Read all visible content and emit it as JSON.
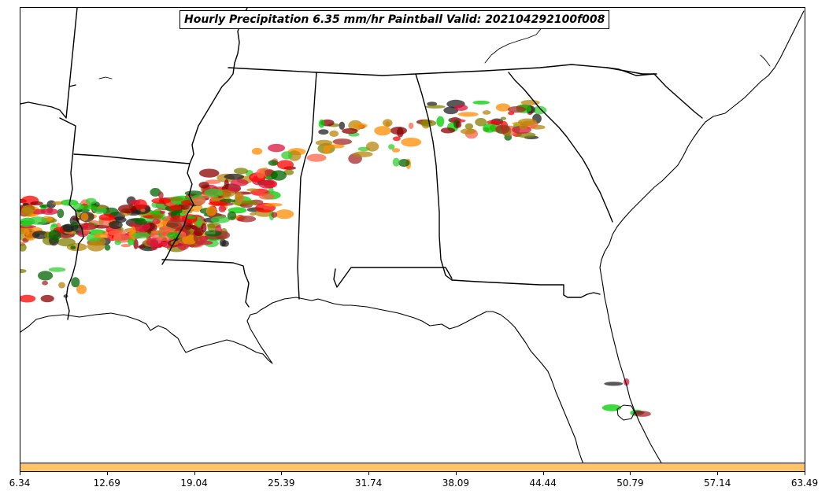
{
  "title": "Hourly Precipitation 6.35 mm/hr Paintball Valid: 202104292100f008",
  "colorbar": {
    "color": "#fec468",
    "ticks": [
      "6.34",
      "12.69",
      "19.04",
      "25.39",
      "31.74",
      "38.09",
      "44.44",
      "50.79",
      "57.14",
      "63.49"
    ]
  },
  "map": {
    "region": "Southeastern United States",
    "land_color": "#ffffff",
    "border_color": "#000000",
    "member_colors": [
      "#ff0000",
      "#ff8c00",
      "#8b0000",
      "#006400",
      "#00cc00",
      "#808000",
      "#222222",
      "#a52a2a",
      "#ff6347",
      "#32cd32",
      "#b8860b",
      "#dc143c"
    ]
  }
}
